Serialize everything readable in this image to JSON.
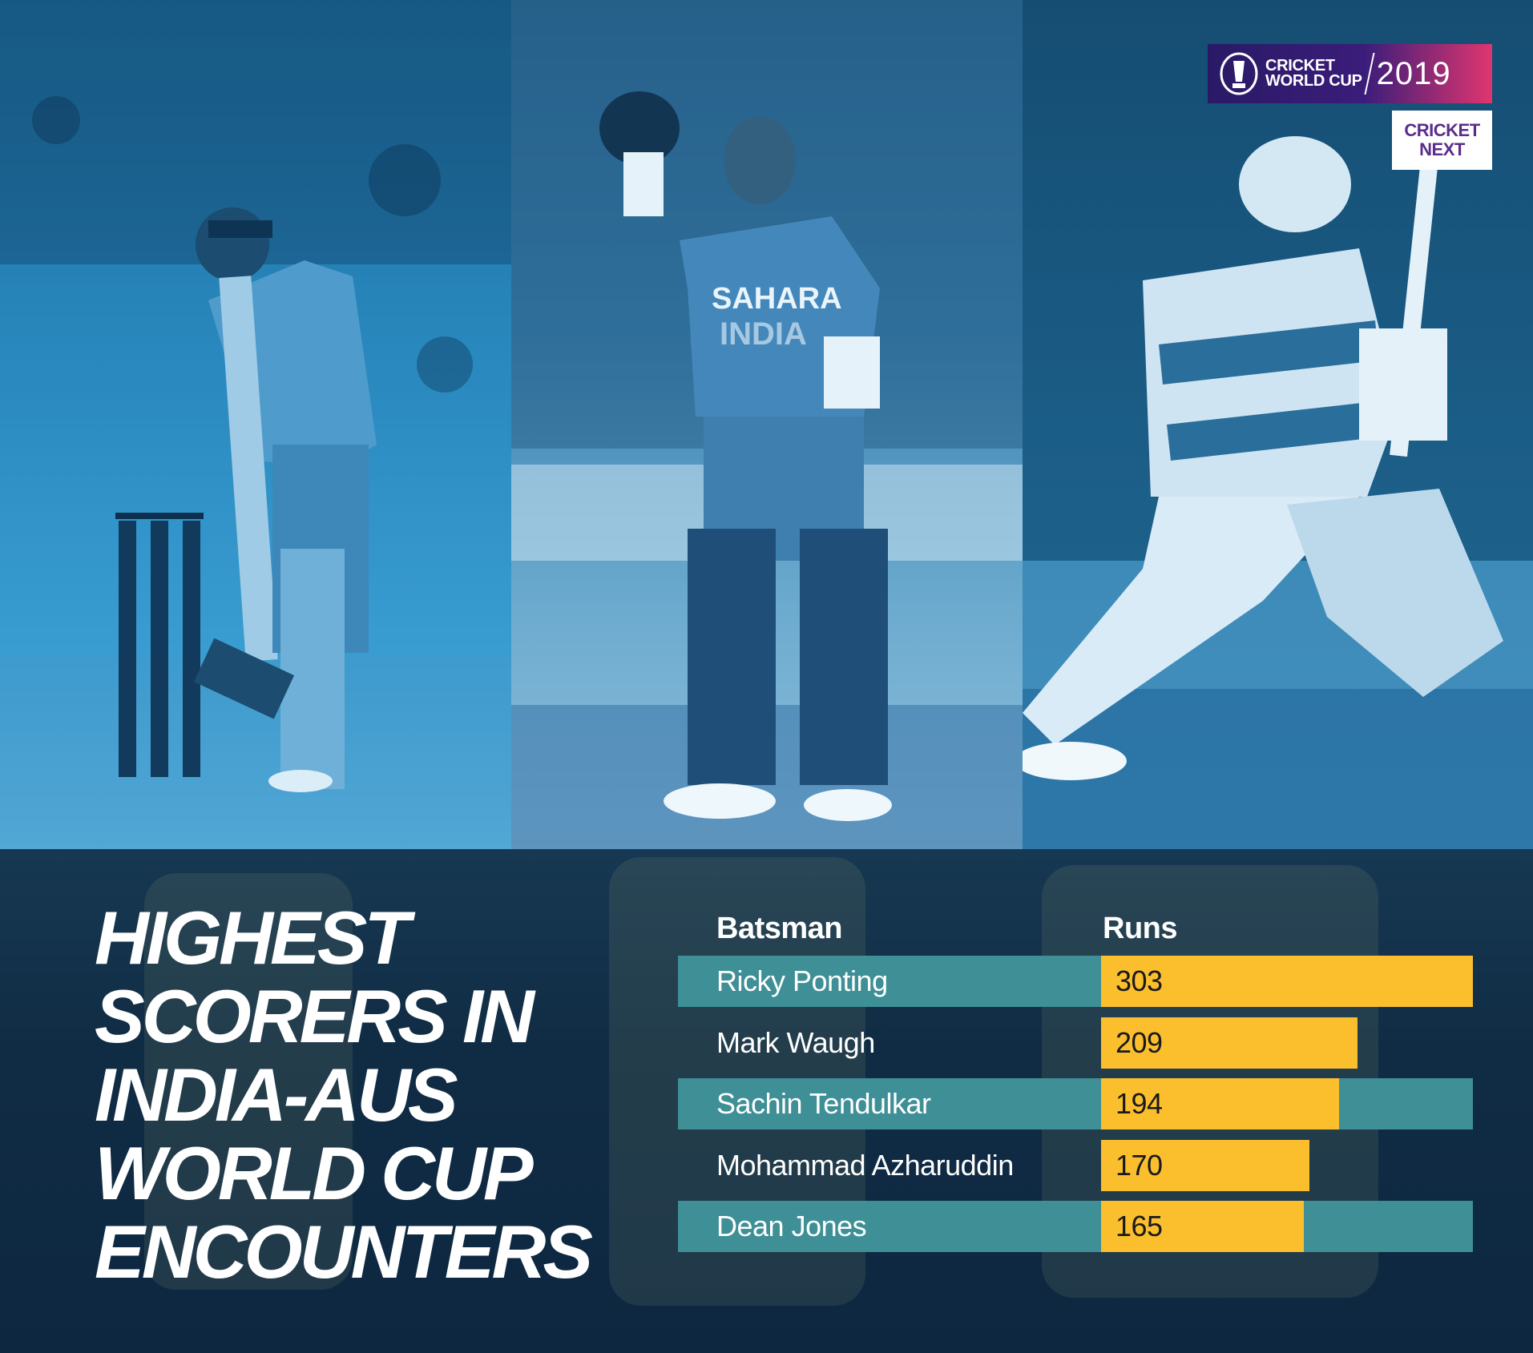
{
  "logos": {
    "cwc_line1": "CRICKET",
    "cwc_line2": "WORLD CUP",
    "cwc_year": "2019",
    "cricketnext_line1": "CRICKET",
    "cricketnext_line2": "NEXT"
  },
  "photo_texts": {
    "jersey_text_1": "SAHARA",
    "jersey_text_2": "INDIA"
  },
  "headline": {
    "line1": "HIGHEST",
    "line2": "SCORERS IN",
    "line3": "INDIA-AUS",
    "line4": "WORLD CUP",
    "line5": "ENCOUNTERS"
  },
  "colors": {
    "band": "#3e8f96",
    "bar": "#fbbf2e",
    "background": "#0e2b45"
  },
  "chart_data": {
    "type": "bar",
    "orientation": "horizontal",
    "title": "HIGHEST SCORERS IN INDIA-AUS WORLD CUP ENCOUNTERS",
    "column_headers": {
      "category": "Batsman",
      "value": "Runs"
    },
    "categories": [
      "Ricky Ponting",
      "Mark Waugh",
      "Sachin Tendulkar",
      "Mohammad Azharuddin",
      "Dean Jones"
    ],
    "values": [
      303,
      209,
      194,
      170,
      165
    ],
    "xlim": [
      0,
      303
    ],
    "grid": false,
    "legend": "none"
  }
}
